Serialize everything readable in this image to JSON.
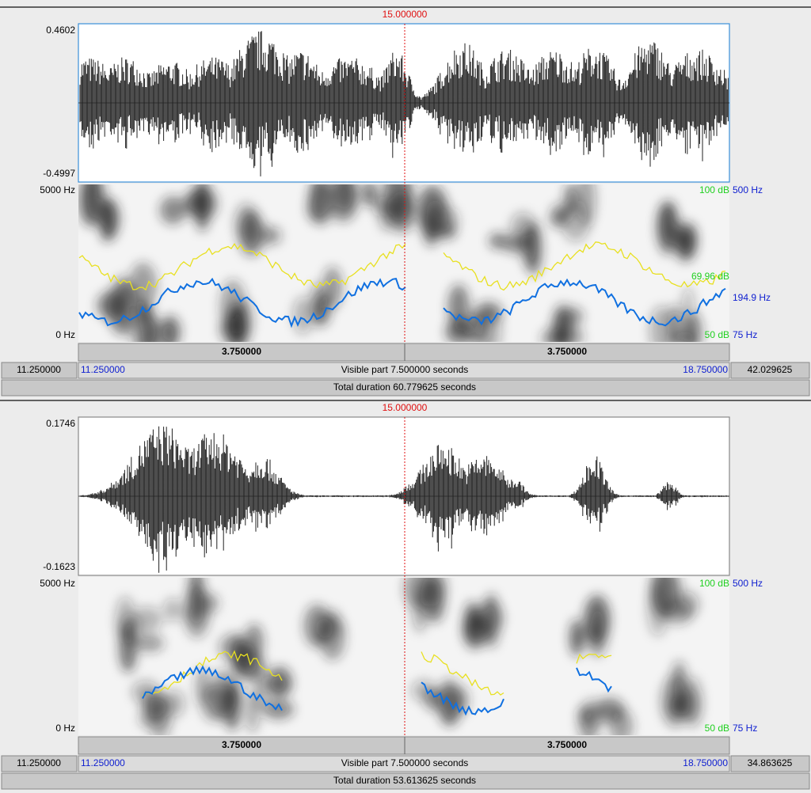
{
  "panels": [
    {
      "cursor": "15.000000",
      "wave_max": "0.4602",
      "wave_min": "-0.4997",
      "spec_top": "5000 Hz",
      "spec_bottom": "0 Hz",
      "db_top": "100 dB",
      "hz_top": "500 Hz",
      "db_mid": "69.96 dB",
      "hz_mid": "194.9 Hz",
      "db_bottom": "50 dB",
      "hz_bottom": "75 Hz",
      "segments": [
        "3.750000",
        "3.750000"
      ],
      "window_start": "11.250000",
      "visible_start": "11.250000",
      "visible_label": "Visible part 7.500000 seconds",
      "visible_end": "18.750000",
      "window_end": "42.029625",
      "total": "Total duration 60.779625 seconds"
    },
    {
      "cursor": "15.000000",
      "wave_max": "0.1746",
      "wave_min": "-0.1623",
      "spec_top": "5000 Hz",
      "spec_bottom": "0 Hz",
      "db_top": "100 dB",
      "hz_top": "500 Hz",
      "db_bottom": "50 dB",
      "hz_bottom": "75 Hz",
      "segments": [
        "3.750000",
        "3.750000"
      ],
      "window_start": "11.250000",
      "visible_start": "11.250000",
      "visible_label": "Visible part 7.500000 seconds",
      "visible_end": "18.750000",
      "window_end": "34.863625",
      "total": "Total duration 53.613625 seconds"
    }
  ]
}
